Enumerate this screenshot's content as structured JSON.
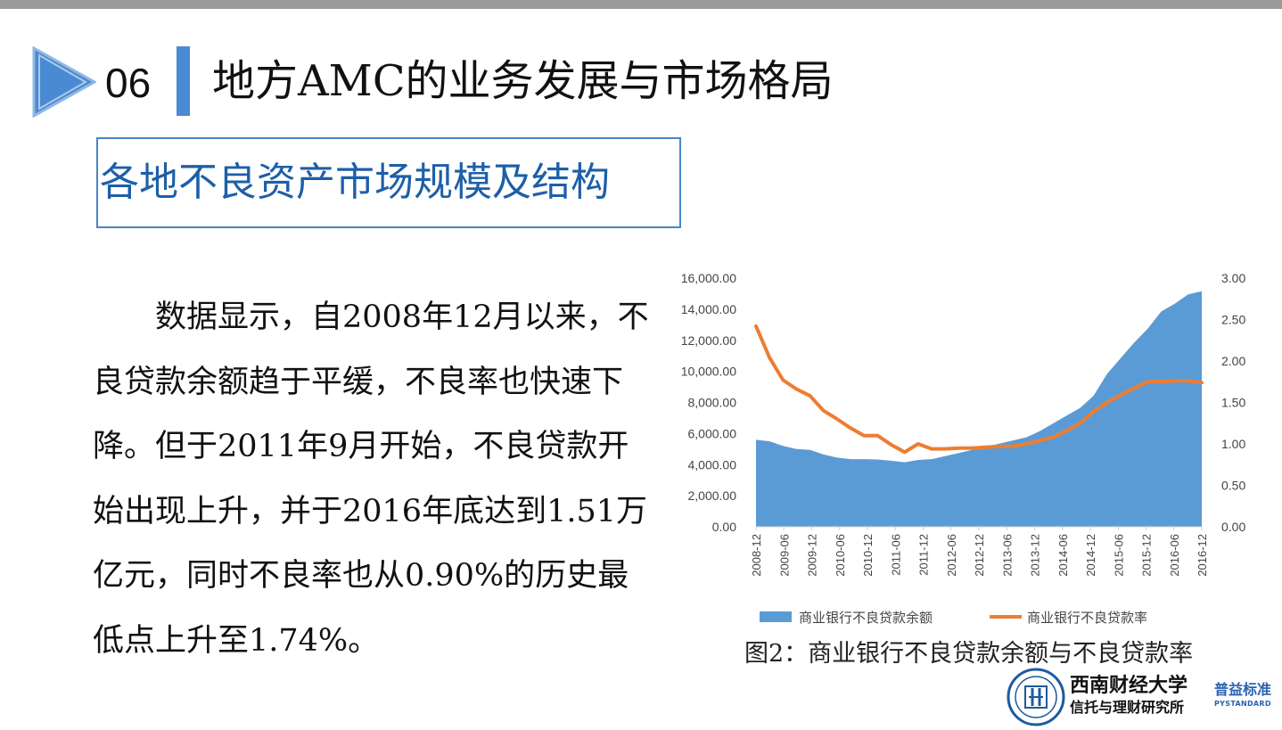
{
  "header": {
    "section_number": "06",
    "title": "地方AMC的业务发展与市场格局"
  },
  "subtitle": "各地不良资产市场规模及结构",
  "body_paragraph": "数据显示，自2008年12月以来，不良贷款余额趋于平缓，不良率也快速下降。但于2011年9月开始，不良贷款开始出现上升，并于2016年底达到1.51万亿元，同时不良率也从0.90%的历史最低点上升至1.74%。",
  "chart_caption": "图2：商业银行不良贷款余额与不良贷款率",
  "logo": {
    "university_line": "西南财经大学",
    "institute_line": "信托与理财研究所",
    "brand_cn": "普益标准",
    "brand_en": "PYSTANDARD"
  },
  "colors": {
    "accent_blue": "#4a8ad2",
    "area_fill": "#5b9bd5",
    "line_orange": "#ed7d31",
    "subtitle_blue": "#1d5fa8"
  },
  "chart_data": {
    "type": "area+line",
    "x_tick_labels": [
      "2008-12",
      "2009-06",
      "2009-12",
      "2010-06",
      "2010-12",
      "2011-06",
      "2011-12",
      "2012-06",
      "2012-12",
      "2013-06",
      "2013-12",
      "2014-06",
      "2014-12",
      "2015-06",
      "2015-12",
      "2016-06",
      "2016-12"
    ],
    "left_axis": {
      "min": 0,
      "max": 16000,
      "ticks": [
        "0.00",
        "2,000.00",
        "4,000.00",
        "6,000.00",
        "8,000.00",
        "10,000.00",
        "12,000.00",
        "14,000.00",
        "16,000.00"
      ]
    },
    "right_axis": {
      "min": 0,
      "max": 3,
      "ticks": [
        "0.00",
        "0.50",
        "1.00",
        "1.50",
        "2.00",
        "2.50",
        "3.00"
      ]
    },
    "series": [
      {
        "name": "商业银行不良贷款余额",
        "kind": "area",
        "axis": "left",
        "values": [
          5600,
          5500,
          5200,
          5000,
          4950,
          4650,
          4450,
          4350,
          4350,
          4330,
          4250,
          4150,
          4300,
          4350,
          4550,
          4750,
          4950,
          5150,
          5350,
          5550,
          5750,
          6150,
          6650,
          7150,
          7650,
          8450,
          9850,
          10850,
          11850,
          12750,
          13850,
          14350,
          14950,
          15150
        ]
      },
      {
        "name": "商业银行不良贷款率",
        "kind": "line",
        "axis": "right",
        "values": [
          2.42,
          2.04,
          1.77,
          1.66,
          1.58,
          1.4,
          1.3,
          1.19,
          1.1,
          1.1,
          0.99,
          0.9,
          1.0,
          0.94,
          0.94,
          0.95,
          0.95,
          0.96,
          0.97,
          0.97,
          1.0,
          1.04,
          1.08,
          1.16,
          1.25,
          1.39,
          1.5,
          1.59,
          1.67,
          1.75,
          1.75,
          1.76,
          1.76,
          1.74
        ]
      }
    ],
    "legend_position": "bottom",
    "grid": false
  }
}
